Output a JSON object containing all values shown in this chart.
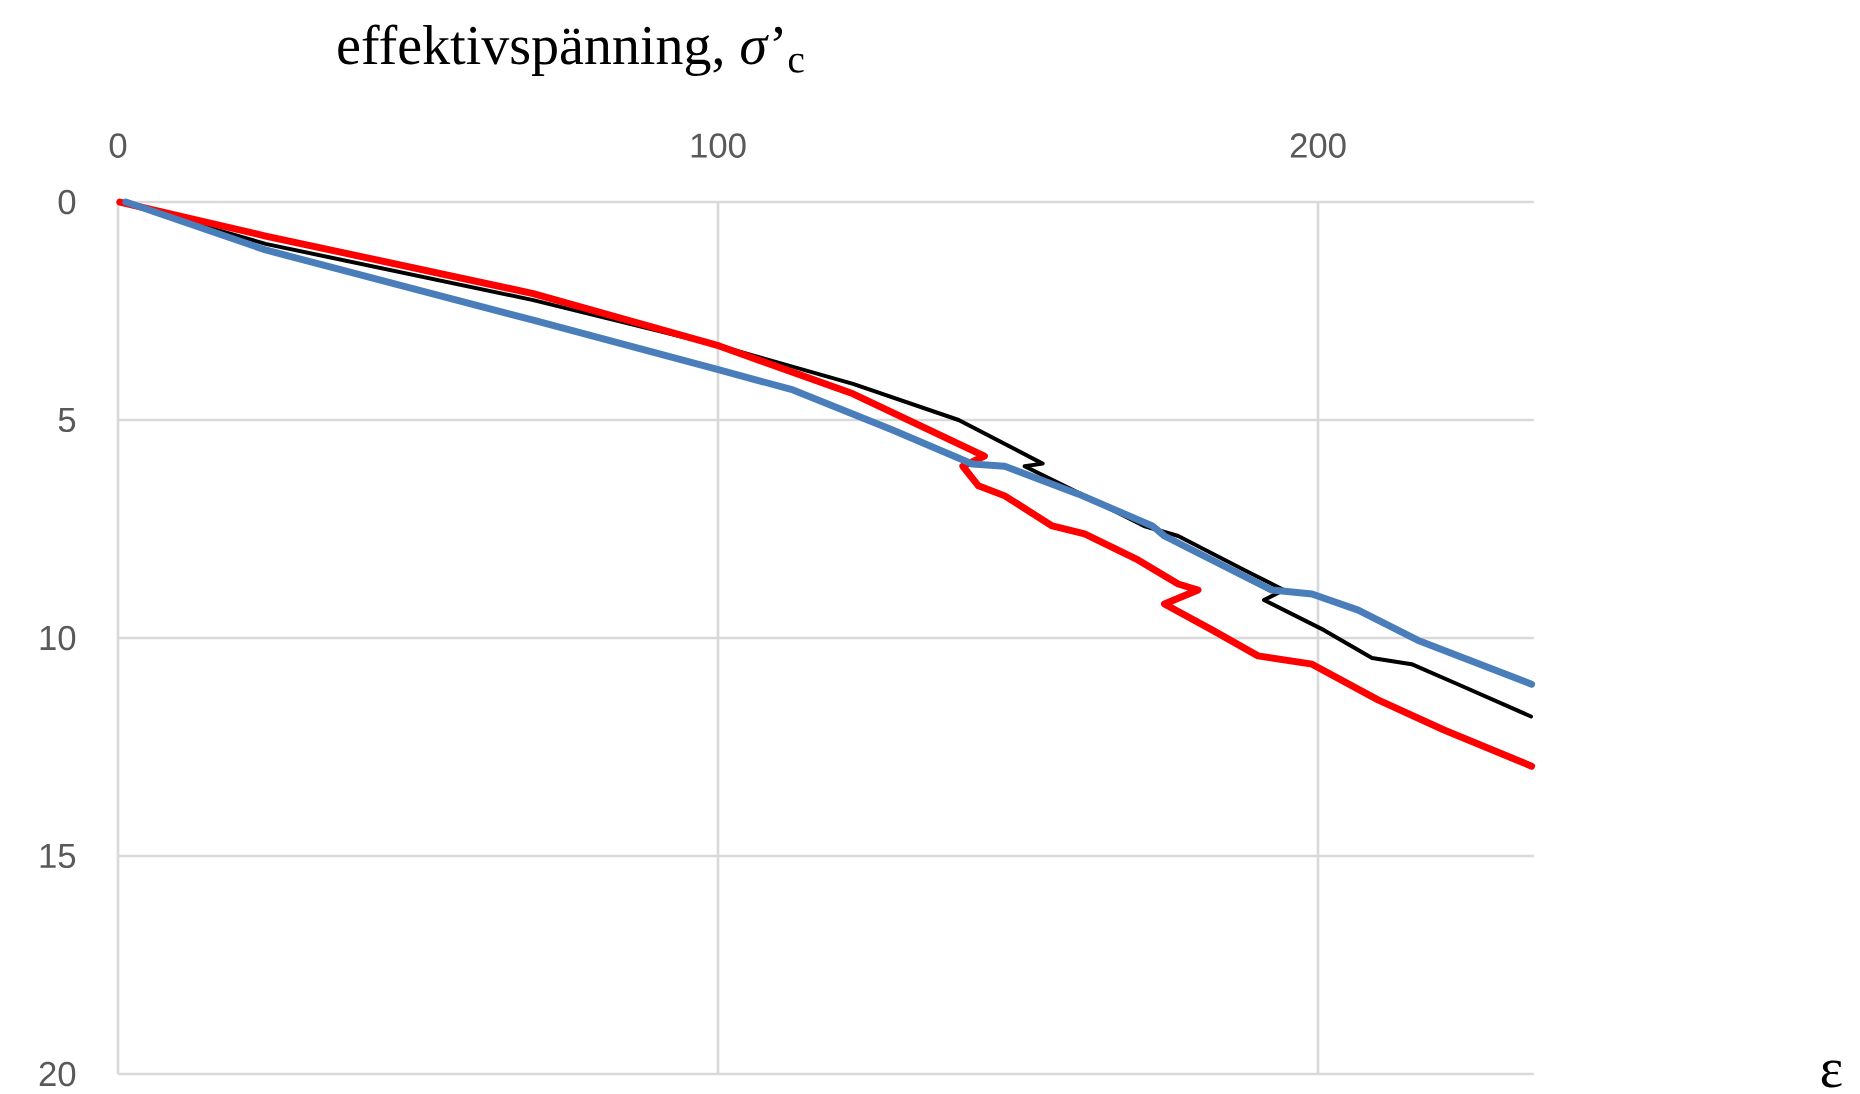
{
  "chart_data": {
    "type": "line",
    "xlabel": "effektivspänning, *σ*’$_{c}$",
    "annotations": [
      "ε"
    ],
    "xlim": [
      0,
      236
    ],
    "xticks": [
      0,
      100,
      200
    ],
    "ylim": [
      20,
      0
    ],
    "yticks": [
      0,
      5,
      10,
      15,
      20
    ],
    "grid": true,
    "marker": "none",
    "line_style": "solid",
    "series": [
      {
        "color": "#000000",
        "x": [
          0.3,
          24.6,
          69.2,
          100.2,
          122.5,
          140.1,
          154.1,
          151.1,
          161.1,
          171.0,
          176.7,
          187.7,
          194.3,
          191.0,
          201.0,
          209.0,
          215.6,
          223.3,
          235.5
        ],
        "values": [
          0,
          0.96,
          2.25,
          3.3,
          4.17,
          5.0,
          6.0,
          6.06,
          6.74,
          7.43,
          7.66,
          8.44,
          8.9,
          9.13,
          9.82,
          10.46,
          10.6,
          11.06,
          11.8
        ]
      },
      {
        "color": "#ff0000",
        "x": [
          0.3,
          24.6,
          69.2,
          100.2,
          122.5,
          144.4,
          140.8,
          143.4,
          147.8,
          155.7,
          161.1,
          170.0,
          176.7,
          180.0,
          174.4,
          182.4,
          190.0,
          199.0,
          210.0,
          221.0,
          235.6
        ],
        "values": [
          0,
          0.78,
          2.1,
          3.3,
          4.4,
          5.83,
          6.06,
          6.51,
          6.74,
          7.43,
          7.61,
          8.21,
          8.76,
          8.9,
          9.22,
          9.82,
          10.41,
          10.6,
          11.42,
          12.11,
          12.94
        ]
      },
      {
        "color": "#4a7ebb",
        "x": [
          1.3,
          24.6,
          69.2,
          100.2,
          112.5,
          129.1,
          142.4,
          147.8,
          160.1,
          172.4,
          174.4,
          192.3,
          199.0,
          206.7,
          216.6,
          235.6
        ],
        "values": [
          0,
          1.1,
          2.71,
          3.85,
          4.31,
          5.23,
          6.01,
          6.06,
          6.7,
          7.43,
          7.66,
          8.9,
          8.99,
          9.36,
          10.05,
          11.06
        ]
      }
    ]
  }
}
